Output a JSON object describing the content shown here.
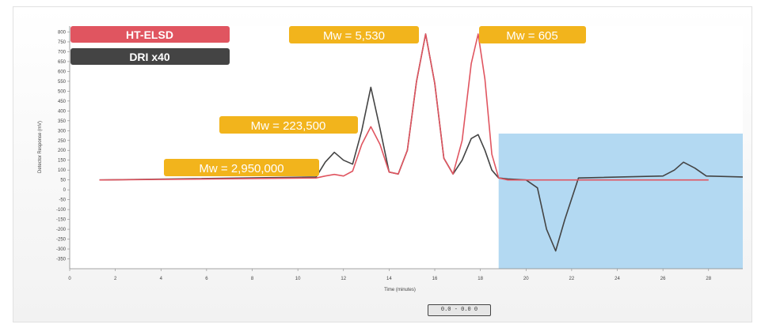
{
  "chart_data": {
    "type": "line",
    "xlabel": "Time (minutes)",
    "ylabel": "Detector Response (mV)",
    "xlim": [
      0,
      29.5
    ],
    "ylim": [
      -400,
      830
    ],
    "x_ticks": [
      0,
      2,
      4,
      6,
      8,
      10,
      12,
      14,
      16,
      18,
      20,
      22,
      24,
      26,
      28
    ],
    "x_tick_labels": [
      "0",
      "2",
      "4",
      "6",
      "8",
      "10",
      "12",
      "14",
      "16",
      "18",
      "20",
      "22",
      "24",
      "26",
      "28"
    ],
    "y_ticks": [
      800,
      750,
      700,
      650,
      600,
      550,
      500,
      450,
      400,
      350,
      300,
      250,
      200,
      150,
      100,
      50,
      0,
      -50,
      -100,
      -150,
      -200,
      -250,
      -300,
      -350
    ],
    "y_tick_labels": [
      "800",
      "750",
      "700",
      "650",
      "600",
      "550",
      "500",
      "450",
      "400",
      "350",
      "300",
      "250",
      "200",
      "150",
      "100",
      "50",
      "0",
      "-50",
      "-100",
      "-150",
      "-200",
      "-250",
      "-300",
      "-350"
    ],
    "highlight_region": {
      "x_start": 18.8,
      "x_end": 29.5,
      "y_bottom": -400,
      "y_top": 285,
      "color": "#b3d9f2"
    },
    "series": [
      {
        "name": "HT-ELSD",
        "color": "#e05560",
        "x": [
          1.3,
          10.8,
          11.2,
          11.6,
          12.0,
          12.4,
          12.8,
          13.2,
          13.6,
          14.0,
          14.4,
          14.8,
          15.2,
          15.6,
          16.0,
          16.4,
          16.8,
          17.2,
          17.6,
          17.9,
          18.2,
          18.5,
          18.8,
          19.2,
          28.0
        ],
        "values": [
          50,
          60,
          70,
          78,
          70,
          95,
          230,
          320,
          230,
          90,
          80,
          200,
          550,
          790,
          540,
          160,
          80,
          250,
          640,
          790,
          560,
          180,
          60,
          50,
          50
        ]
      },
      {
        "name": "DRI x40",
        "color": "#444444",
        "x": [
          1.3,
          10.8,
          11.2,
          11.6,
          12.0,
          12.4,
          12.8,
          13.2,
          13.6,
          14.0,
          14.4,
          14.8,
          15.2,
          15.6,
          16.0,
          16.4,
          16.8,
          17.2,
          17.6,
          17.9,
          18.2,
          18.5,
          18.8,
          19.2,
          20.0,
          20.5,
          20.9,
          21.3,
          21.7,
          22.3,
          26.0,
          26.5,
          26.9,
          27.4,
          27.9,
          29.5
        ],
        "values": [
          50,
          65,
          140,
          190,
          150,
          130,
          300,
          520,
          310,
          90,
          80,
          200,
          550,
          790,
          540,
          160,
          80,
          150,
          260,
          280,
          200,
          100,
          60,
          55,
          50,
          10,
          -200,
          -310,
          -150,
          60,
          70,
          100,
          140,
          110,
          70,
          65
        ]
      }
    ],
    "legend": [
      {
        "name": "HT-ELSD",
        "color": "#e05560"
      },
      {
        "name": "DRI x40",
        "color": "#444444"
      }
    ],
    "annotations": [
      {
        "text": "Mw = 2,950,000",
        "color": "#f2b41c"
      },
      {
        "text": "Mw = 223,500",
        "color": "#f2b41c"
      },
      {
        "text": "Mw = 5,530",
        "color": "#f2b41c"
      },
      {
        "text": "Mw = 605",
        "color": "#f2b41c"
      }
    ]
  },
  "zoom_label": "0.0 - 0.0 0"
}
